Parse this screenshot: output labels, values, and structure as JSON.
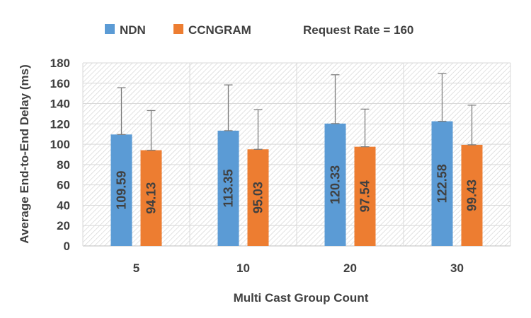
{
  "chart_data": {
    "type": "bar",
    "title": "",
    "annotation": "Request Rate = 160",
    "xlabel": "Multi Cast Group Count",
    "ylabel": "Average End-to-End Delay (ms)",
    "categories": [
      "5",
      "10",
      "20",
      "30"
    ],
    "ylim": [
      0,
      180
    ],
    "yticks": [
      0,
      20,
      40,
      60,
      80,
      100,
      120,
      140,
      160,
      180
    ],
    "ytick_labels": [
      "0",
      "20",
      "40",
      "60",
      "80",
      "100",
      "120",
      "140",
      "160",
      "180"
    ],
    "grid": true,
    "legend_position": "top",
    "series": [
      {
        "name": "NDN",
        "color": "#5B9BD5",
        "values": [
          109.59,
          113.35,
          120.33,
          122.58
        ],
        "labels": [
          "109.59",
          "113.35",
          "120.33",
          "122.58"
        ],
        "error_upper": [
          46,
          45,
          48,
          47
        ]
      },
      {
        "name": "CCNGRAM",
        "color": "#ED7D31",
        "values": [
          94.13,
          95.03,
          97.54,
          99.43
        ],
        "labels": [
          "94.13",
          "95.03",
          "97.54",
          "99.43"
        ],
        "error_upper": [
          39,
          39,
          37,
          39
        ]
      }
    ]
  }
}
